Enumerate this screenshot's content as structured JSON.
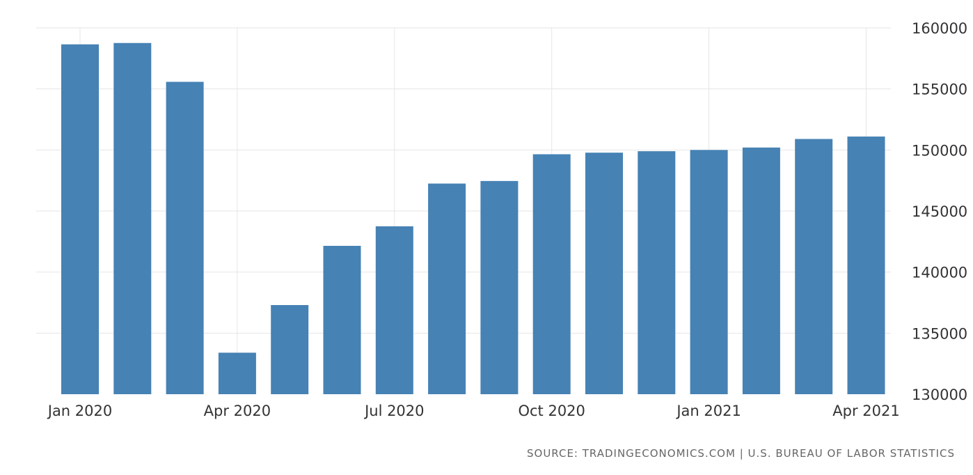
{
  "chart_data": {
    "type": "bar",
    "categories": [
      "Jan 2020",
      "Feb 2020",
      "Mar 2020",
      "Apr 2020",
      "May 2020",
      "Jun 2020",
      "Jul 2020",
      "Aug 2020",
      "Sep 2020",
      "Oct 2020",
      "Nov 2020",
      "Dec 2020",
      "Jan 2021",
      "Feb 2021",
      "Mar 2021",
      "Apr 2021"
    ],
    "values": [
      158650,
      158760,
      155580,
      133400,
      137300,
      142150,
      143750,
      147250,
      147460,
      149650,
      149780,
      149900,
      150000,
      150200,
      150900,
      151100
    ],
    "x_tick_labels": [
      "Jan 2020",
      "Apr 2020",
      "Jul 2020",
      "Oct 2020",
      "Jan 2021",
      "Apr 2021"
    ],
    "y_tick_labels": [
      "160000",
      "155000",
      "150000",
      "145000",
      "140000",
      "135000",
      "130000"
    ],
    "ylim": [
      130000,
      160000
    ],
    "y_axis_side": "right",
    "grid": true,
    "title": "",
    "xlabel": "",
    "ylabel": "",
    "bar_color": "#4682b4",
    "grid_color": "#e6e6e6"
  },
  "source": "SOURCE: TRADINGECONOMICS.COM | U.S. BUREAU OF LABOR STATISTICS"
}
